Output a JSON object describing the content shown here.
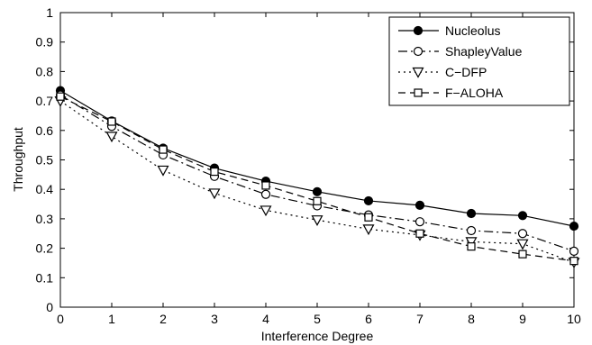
{
  "chart_data": {
    "type": "line",
    "xlabel": "Interference Degree",
    "ylabel": "Throughput",
    "xlim": [
      0,
      10
    ],
    "ylim": [
      0,
      1
    ],
    "xticks": [
      0,
      1,
      2,
      3,
      4,
      5,
      6,
      7,
      8,
      9,
      10
    ],
    "yticks": [
      0,
      0.1,
      0.2,
      0.3,
      0.4,
      0.5,
      0.6,
      0.7,
      0.8,
      0.9,
      1
    ],
    "ytick_labels": [
      "0",
      "0.1",
      "0.2",
      "0.3",
      "0.4",
      "0.5",
      "0.6",
      "0.7",
      "0.8",
      "0.9",
      "1"
    ],
    "grid": false,
    "legend_position": "top-right",
    "x": [
      0,
      1,
      2,
      3,
      4,
      5,
      6,
      7,
      8,
      9,
      10
    ],
    "series": [
      {
        "name": "Nucleolus",
        "line_style": "solid",
        "marker": "filled-circle",
        "values": [
          0.735,
          0.632,
          0.54,
          0.472,
          0.428,
          0.392,
          0.361,
          0.346,
          0.318,
          0.311,
          0.275
        ]
      },
      {
        "name": "ShapleyValue",
        "line_style": "dashdot",
        "marker": "circle",
        "values": [
          0.72,
          0.614,
          0.517,
          0.444,
          0.383,
          0.344,
          0.313,
          0.29,
          0.26,
          0.25,
          0.19
        ]
      },
      {
        "name": "C−DFP",
        "line_style": "dotted",
        "marker": "triangle-down",
        "values": [
          0.7,
          0.58,
          0.465,
          0.387,
          0.329,
          0.296,
          0.265,
          0.245,
          0.222,
          0.215,
          0.152
        ]
      },
      {
        "name": "F−ALOHA",
        "line_style": "dashed",
        "marker": "square",
        "values": [
          0.715,
          0.63,
          0.535,
          0.46,
          0.413,
          0.36,
          0.305,
          0.25,
          0.206,
          0.18,
          0.157
        ]
      }
    ]
  }
}
